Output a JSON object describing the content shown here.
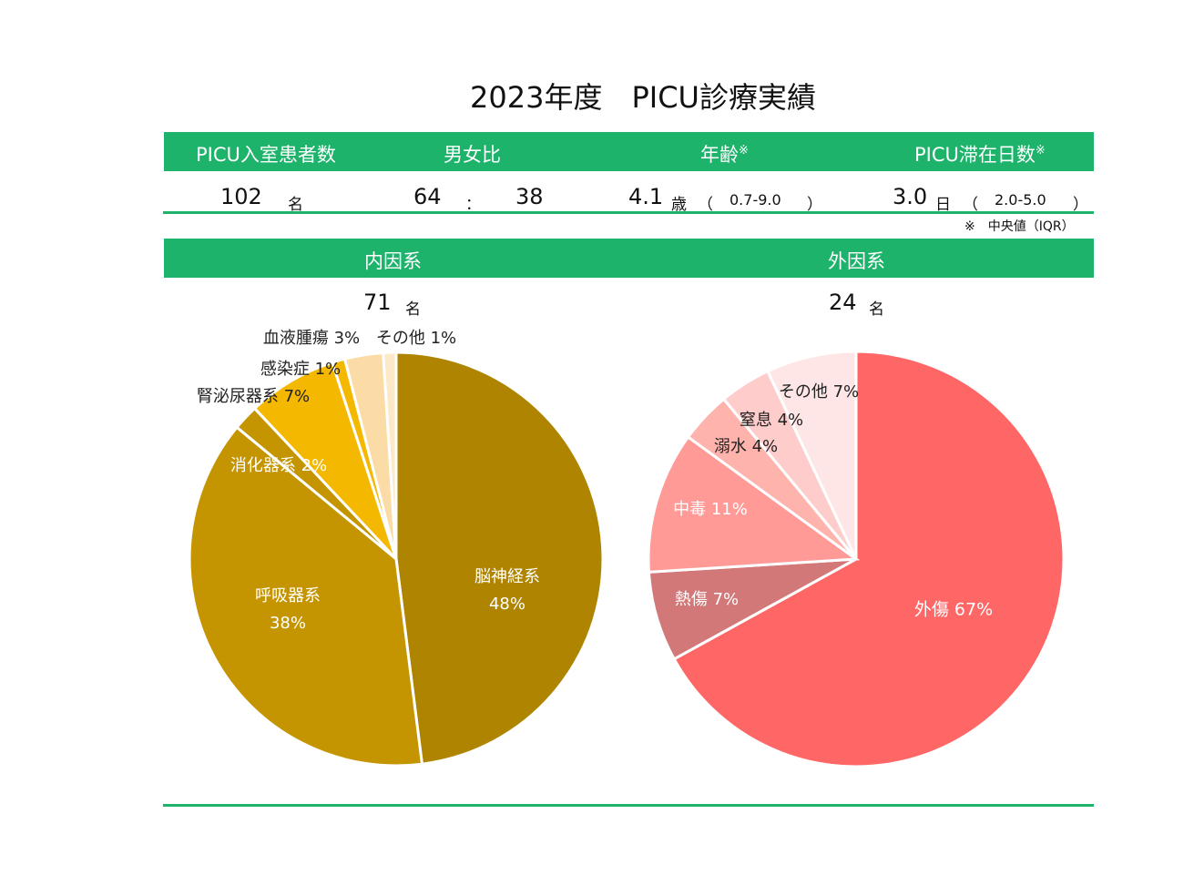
{
  "title": "2023年度　PICU診療実績",
  "summary": {
    "headers": {
      "patients": "PICU入室患者数",
      "sex_ratio": "男女比",
      "age": "年齢",
      "age_mark": "※",
      "stay": "PICU滞在日数",
      "stay_mark": "※"
    },
    "patients_value": "102",
    "patients_unit": "名",
    "male": "64",
    "ratio_sep": "：",
    "female": "38",
    "age_value": "4.1",
    "age_unit": "歳",
    "age_paren_open": "（",
    "age_iqr": "0.7-9.0",
    "age_paren_close": "）",
    "stay_value": "3.0",
    "stay_unit": "日",
    "stay_paren_open": "（",
    "stay_iqr": "2.0-5.0",
    "stay_paren_close": "）",
    "note": "※　中央値（IQR）"
  },
  "sections": {
    "internal": {
      "label": "内因系",
      "count": "71",
      "unit": "名"
    },
    "external": {
      "label": "外因系",
      "count": "24",
      "unit": "名"
    }
  },
  "chart_data": [
    {
      "type": "pie",
      "title": "内因系",
      "slices": [
        {
          "name": "脳神経系",
          "value": 48,
          "label": "脳神経系",
          "pct_label": "48%",
          "color": "#ae8400"
        },
        {
          "name": "呼吸器系",
          "value": 38,
          "label": "呼吸器系",
          "pct_label": "38%",
          "color": "#c49500"
        },
        {
          "name": "消化器系",
          "value": 2,
          "label": "消化器系 2%",
          "color": "#c49500"
        },
        {
          "name": "腎泌尿器系",
          "value": 7,
          "label": "腎泌尿器系 7%",
          "color": "#f5b800"
        },
        {
          "name": "感染症",
          "value": 1,
          "label": "感染症 1%",
          "color": "#f5b800"
        },
        {
          "name": "血液腫瘍",
          "value": 3,
          "label": "血液腫瘍 3%",
          "color": "#fcdca6"
        },
        {
          "name": "その他",
          "value": 1,
          "label": "その他 1%",
          "color": "#fde8c7"
        }
      ]
    },
    {
      "type": "pie",
      "title": "外因系",
      "slices": [
        {
          "name": "外傷",
          "value": 67,
          "label": "外傷 67%",
          "color": "#ff6666"
        },
        {
          "name": "熱傷",
          "value": 7,
          "label": "熱傷 7%",
          "color": "#d27878"
        },
        {
          "name": "中毒",
          "value": 11,
          "label": "中毒 11%",
          "color": "#ff9a96"
        },
        {
          "name": "溺水",
          "value": 4,
          "label": "溺水 4%",
          "color": "#ffb3ad"
        },
        {
          "name": "窒息",
          "value": 4,
          "label": "窒息 4%",
          "color": "#ffcccc"
        },
        {
          "name": "その他",
          "value": 7,
          "label": "その他 7%",
          "color": "#ffe6e6"
        }
      ]
    }
  ]
}
